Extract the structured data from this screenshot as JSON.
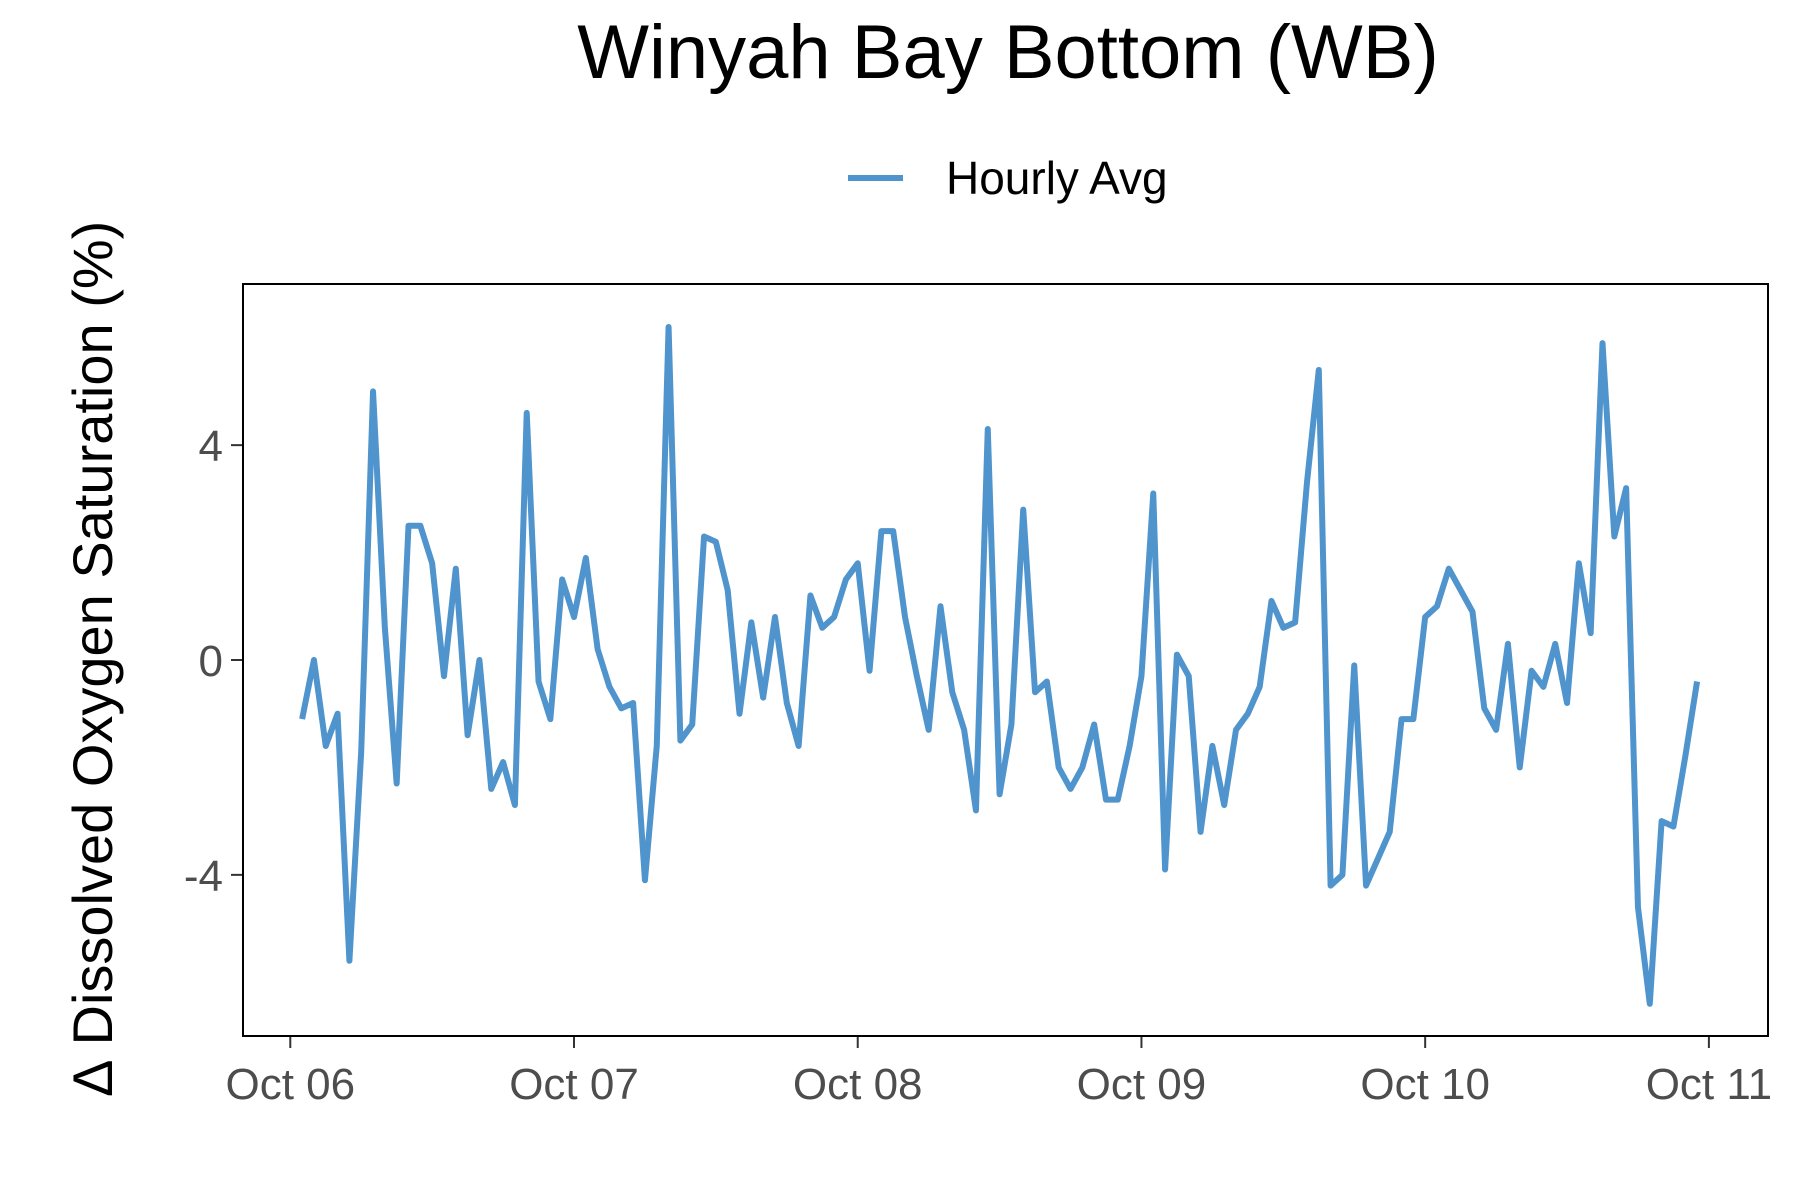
{
  "chart_data": {
    "type": "line",
    "title": "Winyah Bay Bottom (WB)",
    "xlabel": "",
    "ylabel": "∆ Dissolved Oxygen Saturation (%)",
    "xlim": [
      "2023-10-05T20:00",
      "2023-10-11T05:00"
    ],
    "ylim": [
      -7,
      7
    ],
    "x_ticks": [
      "Oct 06",
      "Oct 07",
      "Oct 08",
      "Oct 09",
      "Oct 10",
      "Oct 11"
    ],
    "y_ticks": [
      "4",
      "0",
      "-4"
    ],
    "grid": false,
    "legend_position": "top",
    "series": [
      {
        "name": "Hourly Avg",
        "color": "#4f94cd",
        "x": [
          "2023-10-06T01:00",
          "2023-10-06T02:00",
          "2023-10-06T03:00",
          "2023-10-06T04:00",
          "2023-10-06T05:00",
          "2023-10-06T06:00",
          "2023-10-06T07:00",
          "2023-10-06T08:00",
          "2023-10-06T09:00",
          "2023-10-06T10:00",
          "2023-10-06T11:00",
          "2023-10-06T12:00",
          "2023-10-06T13:00",
          "2023-10-06T14:00",
          "2023-10-06T15:00",
          "2023-10-06T16:00",
          "2023-10-06T17:00",
          "2023-10-06T18:00",
          "2023-10-06T19:00",
          "2023-10-06T20:00",
          "2023-10-06T21:00",
          "2023-10-06T22:00",
          "2023-10-06T23:00",
          "2023-10-07T00:00",
          "2023-10-07T01:00",
          "2023-10-07T02:00",
          "2023-10-07T03:00",
          "2023-10-07T04:00",
          "2023-10-07T05:00",
          "2023-10-07T06:00",
          "2023-10-07T07:00",
          "2023-10-07T08:00",
          "2023-10-07T09:00",
          "2023-10-07T10:00",
          "2023-10-07T11:00",
          "2023-10-07T12:00",
          "2023-10-07T13:00",
          "2023-10-07T14:00",
          "2023-10-07T15:00",
          "2023-10-07T16:00",
          "2023-10-07T17:00",
          "2023-10-07T18:00",
          "2023-10-07T19:00",
          "2023-10-07T20:00",
          "2023-10-07T21:00",
          "2023-10-07T22:00",
          "2023-10-07T23:00",
          "2023-10-08T00:00",
          "2023-10-08T01:00",
          "2023-10-08T02:00",
          "2023-10-08T03:00",
          "2023-10-08T04:00",
          "2023-10-08T05:00",
          "2023-10-08T06:00",
          "2023-10-08T07:00",
          "2023-10-08T08:00",
          "2023-10-08T09:00",
          "2023-10-08T10:00",
          "2023-10-08T11:00",
          "2023-10-08T12:00",
          "2023-10-08T13:00",
          "2023-10-08T14:00",
          "2023-10-08T15:00",
          "2023-10-08T16:00",
          "2023-10-08T17:00",
          "2023-10-08T18:00",
          "2023-10-08T19:00",
          "2023-10-08T20:00",
          "2023-10-08T21:00",
          "2023-10-08T22:00",
          "2023-10-08T23:00",
          "2023-10-09T00:00",
          "2023-10-09T01:00",
          "2023-10-09T02:00",
          "2023-10-09T03:00",
          "2023-10-09T04:00",
          "2023-10-09T05:00",
          "2023-10-09T06:00",
          "2023-10-09T07:00",
          "2023-10-09T08:00",
          "2023-10-09T09:00",
          "2023-10-09T10:00",
          "2023-10-09T11:00",
          "2023-10-09T12:00",
          "2023-10-09T13:00",
          "2023-10-09T14:00",
          "2023-10-09T15:00",
          "2023-10-09T16:00",
          "2023-10-09T17:00",
          "2023-10-09T18:00",
          "2023-10-09T19:00",
          "2023-10-09T20:00",
          "2023-10-09T21:00",
          "2023-10-09T22:00",
          "2023-10-09T23:00",
          "2023-10-10T00:00",
          "2023-10-10T01:00",
          "2023-10-10T02:00",
          "2023-10-10T03:00",
          "2023-10-10T04:00",
          "2023-10-10T05:00",
          "2023-10-10T06:00",
          "2023-10-10T07:00",
          "2023-10-10T08:00",
          "2023-10-10T09:00",
          "2023-10-10T10:00",
          "2023-10-10T11:00",
          "2023-10-10T12:00",
          "2023-10-10T13:00",
          "2023-10-10T14:00",
          "2023-10-10T15:00",
          "2023-10-10T16:00",
          "2023-10-10T17:00",
          "2023-10-10T18:00",
          "2023-10-10T19:00",
          "2023-10-10T20:00",
          "2023-10-10T21:00",
          "2023-10-10T22:00",
          "2023-10-10T23:00"
        ],
        "values": [
          -1.1,
          0.0,
          -1.6,
          -1.0,
          -5.6,
          -1.7,
          5.0,
          0.6,
          -2.3,
          2.5,
          2.5,
          1.8,
          -0.3,
          1.7,
          -1.4,
          0.0,
          -2.4,
          -1.9,
          -2.7,
          4.6,
          -0.4,
          -1.1,
          1.5,
          0.8,
          1.9,
          0.2,
          -0.5,
          -0.9,
          -0.8,
          -4.1,
          -1.6,
          6.2,
          -1.5,
          -1.2,
          2.3,
          2.2,
          1.3,
          -1.0,
          0.7,
          -0.7,
          0.8,
          -0.8,
          -1.6,
          1.2,
          0.6,
          0.8,
          1.5,
          1.8,
          -0.2,
          2.4,
          2.4,
          0.8,
          -0.3,
          -1.3,
          1.0,
          -0.6,
          -1.3,
          -2.8,
          4.3,
          -2.5,
          -1.2,
          2.8,
          -0.6,
          -0.4,
          -2.0,
          -2.4,
          -2.0,
          -1.2,
          -2.6,
          -2.6,
          -1.6,
          -0.3,
          3.1,
          -3.9,
          0.1,
          -0.3,
          -3.2,
          -1.6,
          -2.7,
          -1.3,
          -1.0,
          -0.5,
          1.1,
          0.6,
          0.7,
          3.3,
          5.4,
          -4.2,
          -4.0,
          -0.1,
          -4.2,
          -3.7,
          -3.2,
          -1.1,
          -1.1,
          0.8,
          1.0,
          1.7,
          1.3,
          0.9,
          -0.9,
          -1.3,
          0.3,
          -2.0,
          -0.2,
          -0.5,
          0.3,
          -0.8,
          1.8,
          0.5,
          5.9,
          2.3,
          3.2,
          -4.6,
          -6.4,
          -3.0,
          -3.1,
          -1.8,
          -0.4
        ]
      }
    ]
  }
}
